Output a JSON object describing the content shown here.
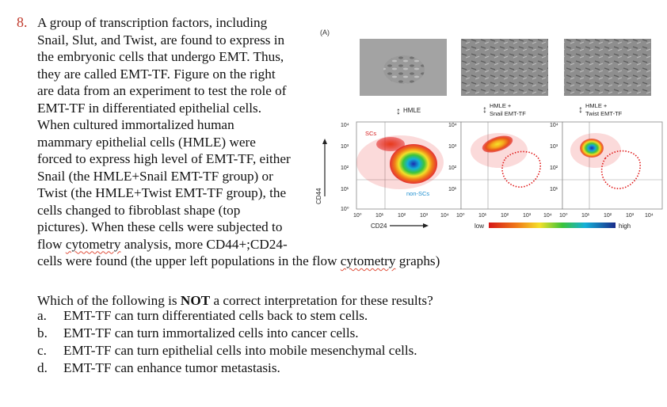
{
  "question": {
    "number": "8.",
    "lines": [
      "A group of transcription factors, including",
      "Snail, Slut, and Twist, are found to express in",
      "the embryonic cells that undergo EMT.  Thus,",
      "they are called EMT-TF. Figure on the right",
      "are data from an experiment to test the role of",
      "EMT-TF in differentiated epithelial cells.",
      "When cultured immortalized human",
      "mammary epithelial cells (HMLE) were",
      "forced to express high level of EMT-TF, either",
      "Snail (the HMLE+Snail EMT-TF group) or",
      "Twist (the HMLE+Twist EMT-TF group), the",
      "cells changed to fibroblast shape (top",
      "pictures). When these cells were subjected to"
    ],
    "line13_pre": "flow ",
    "line13_word": "cytometry",
    "line13_post": " analysis, more CD44+;CD24-",
    "line14_pre": "cells were found (the upper left populations in the flow ",
    "line14_word": "cytometry",
    "line14_post": " graphs)"
  },
  "prompt": {
    "pre": "Which of the following is ",
    "bold": "NOT",
    "post": " a correct interpretation for these results?"
  },
  "options": [
    {
      "letter": "a.",
      "text": "EMT-TF can turn differentiated cells back to stem cells."
    },
    {
      "letter": "b.",
      "text": "EMT-TF can turn immortalized cells into cancer cells."
    },
    {
      "letter": "c.",
      "text": "EMT-TF can turn epithelial cells into mobile mesenchymal cells."
    },
    {
      "letter": "d.",
      "text": "EMT-TF can enhance tumor metastasis."
    }
  ],
  "figure": {
    "panel_label": "(A)",
    "group1": "HMLE",
    "group2_line1": "HMLE +",
    "group2_line2": "Snail EMT-TF",
    "group3_line1": "HMLE +",
    "group3_line2": "Twist EMT-TF",
    "y_axis_label": "CD44",
    "x_axis_label": "CD24",
    "y_ticks": [
      "10⁴",
      "10³",
      "10²",
      "10¹",
      "10⁰"
    ],
    "x_ticks_1": [
      "10⁰",
      "10¹",
      "10²",
      "10³",
      "10⁴"
    ],
    "x_ticks_2": [
      "10⁰",
      "10¹",
      "10²",
      "10³",
      "10⁴"
    ],
    "x_ticks_3": [
      "10⁰",
      "10¹",
      "10²",
      "10³",
      "10⁴"
    ],
    "label_scs": "SCs",
    "label_nonscs": "non-SCs",
    "scale_low": "low",
    "scale_high": "high",
    "colors": {
      "scs": "#d62020",
      "nonscs": "#1e8fd0",
      "question_number": "#c0392b"
    }
  }
}
